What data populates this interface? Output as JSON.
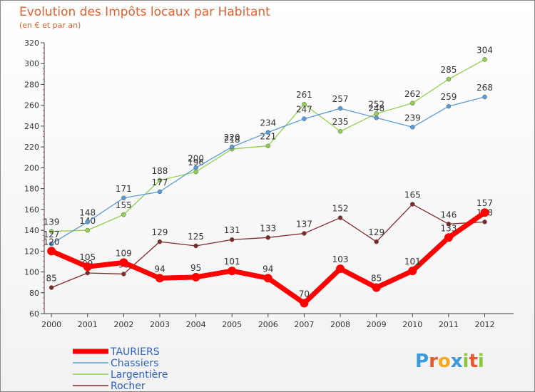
{
  "chart_data": {
    "type": "line",
    "title": "Evolution des Impôts locaux par Habitant",
    "subtitle": "(en € et par an)",
    "xlabel": "",
    "ylabel": "",
    "x": [
      "2000",
      "2001",
      "2002",
      "2003",
      "2004",
      "2005",
      "2006",
      "2007",
      "2008",
      "2009",
      "2010",
      "2011",
      "2012"
    ],
    "ylim": [
      60,
      320
    ],
    "yticks": [
      60,
      80,
      100,
      120,
      140,
      160,
      180,
      200,
      220,
      240,
      260,
      280,
      300,
      320
    ],
    "grid": false,
    "legend_position": "bottom-left",
    "series": [
      {
        "name": "TAURIERS",
        "color": "#ff0000",
        "values": [
          120,
          105,
          109,
          94,
          95,
          101,
          94,
          70,
          103,
          85,
          101,
          133,
          157
        ]
      },
      {
        "name": "Chassiers",
        "color": "#5b9bd5",
        "values": [
          127,
          148,
          171,
          177,
          200,
          220,
          234,
          247,
          257,
          248,
          239,
          259,
          268
        ]
      },
      {
        "name": "Largentière",
        "color": "#92d050",
        "values": [
          139,
          140,
          155,
          188,
          196,
          218,
          221,
          261,
          235,
          252,
          262,
          285,
          304
        ]
      },
      {
        "name": "Rocher",
        "color": "#7f2a2a",
        "values": [
          85,
          99,
          98,
          129,
          125,
          131,
          133,
          137,
          152,
          129,
          165,
          146,
          148
        ]
      }
    ]
  },
  "brand": {
    "letters": [
      "P",
      "r",
      "o",
      "x",
      "i",
      "t",
      "i"
    ],
    "colors": [
      "#3a9ad9",
      "#e8582c",
      "#f4a81d",
      "#3a9ad9",
      "#8cc63f",
      "#e8582c",
      "#8cc63f"
    ]
  }
}
